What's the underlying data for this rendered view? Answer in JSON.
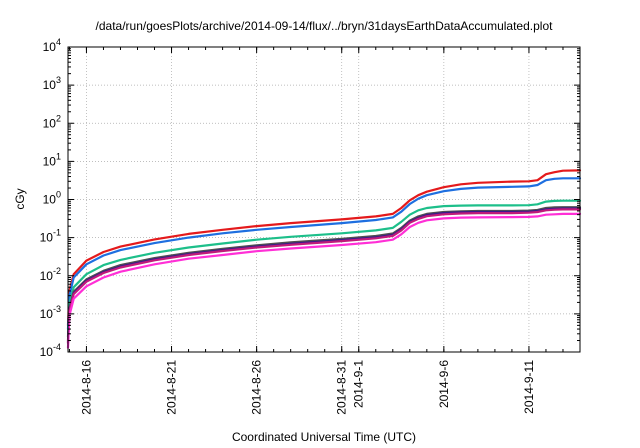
{
  "chart_data": {
    "type": "line",
    "title": "/data/run/goesPlots/archive/2014-09-14/flux/../bryn/31daysEarthDataAccumulated.plot",
    "xlabel": "Coordinated Universal Time (UTC)",
    "ylabel": "cGy",
    "x_range": [
      "2014-08-14T22:00",
      "2014-09-14T00:00"
    ],
    "y_scale": "log",
    "ylim": [
      0.0001,
      10000
    ],
    "grid": true,
    "legend": "none",
    "x_ticks": [
      {
        "date": "2014-08-16",
        "label": "2014-8-16"
      },
      {
        "date": "2014-08-21",
        "label": "2014-8-21"
      },
      {
        "date": "2014-08-26",
        "label": "2014-8-26"
      },
      {
        "date": "2014-08-31",
        "label": "2014-8-31"
      },
      {
        "date": "2014-09-01",
        "label": "2014-9-1"
      },
      {
        "date": "2014-09-06",
        "label": "2014-9-6"
      },
      {
        "date": "2014-09-11",
        "label": "2014-9-11"
      }
    ],
    "y_ticks": [
      {
        "value": 0.0001,
        "base": "10",
        "exp": "-4"
      },
      {
        "value": 0.001,
        "base": "10",
        "exp": "-3"
      },
      {
        "value": 0.01,
        "base": "10",
        "exp": "-2"
      },
      {
        "value": 0.1,
        "base": "10",
        "exp": "-1"
      },
      {
        "value": 1,
        "base": "10",
        "exp": "0"
      },
      {
        "value": 10,
        "base": "10",
        "exp": "1"
      },
      {
        "value": 100,
        "base": "10",
        "exp": "2"
      },
      {
        "value": 1000,
        "base": "10",
        "exp": "3"
      },
      {
        "value": 10000,
        "base": "10",
        "exp": "4"
      }
    ],
    "series": [
      {
        "color": "#e41a1c",
        "x": [
          "2014-08-14T22:00",
          "2014-08-15T00:00",
          "2014-08-15T06:00",
          "2014-08-16T00:00",
          "2014-08-17T00:00",
          "2014-08-18T00:00",
          "2014-08-20T00:00",
          "2014-08-22T00:00",
          "2014-08-24T00:00",
          "2014-08-26T00:00",
          "2014-08-28T00:00",
          "2014-08-31T00:00",
          "2014-09-02T00:00",
          "2014-09-03T00:00",
          "2014-09-03T12:00",
          "2014-09-04T00:00",
          "2014-09-04T12:00",
          "2014-09-05T00:00",
          "2014-09-06T00:00",
          "2014-09-07T00:00",
          "2014-09-08T00:00",
          "2014-09-10T00:00",
          "2014-09-11T00:00",
          "2014-09-11T12:00",
          "2014-09-12T00:00",
          "2014-09-12T12:00",
          "2014-09-13T00:00",
          "2014-09-14T00:00"
        ],
        "values": [
          0.0005,
          0.004,
          0.011,
          0.025,
          0.042,
          0.058,
          0.09,
          0.125,
          0.16,
          0.2,
          0.24,
          0.3,
          0.36,
          0.42,
          0.6,
          0.95,
          1.3,
          1.6,
          2.1,
          2.5,
          2.75,
          2.95,
          3.0,
          3.2,
          4.6,
          5.2,
          5.7,
          5.8
        ]
      },
      {
        "color": "#1e6fe0",
        "x": [
          "2014-08-14T22:00",
          "2014-08-15T00:00",
          "2014-08-15T06:00",
          "2014-08-16T00:00",
          "2014-08-17T00:00",
          "2014-08-18T00:00",
          "2014-08-20T00:00",
          "2014-08-22T00:00",
          "2014-08-24T00:00",
          "2014-08-26T00:00",
          "2014-08-28T00:00",
          "2014-08-31T00:00",
          "2014-09-02T00:00",
          "2014-09-03T00:00",
          "2014-09-03T12:00",
          "2014-09-04T00:00",
          "2014-09-04T12:00",
          "2014-09-05T00:00",
          "2014-09-06T00:00",
          "2014-09-07T00:00",
          "2014-09-08T00:00",
          "2014-09-10T00:00",
          "2014-09-11T00:00",
          "2014-09-11T12:00",
          "2014-09-12T00:00",
          "2014-09-12T12:00",
          "2014-09-13T00:00",
          "2014-09-14T00:00"
        ],
        "values": [
          0.0004,
          0.003,
          0.009,
          0.02,
          0.034,
          0.047,
          0.072,
          0.1,
          0.13,
          0.16,
          0.19,
          0.24,
          0.29,
          0.34,
          0.48,
          0.76,
          1.05,
          1.3,
          1.65,
          1.9,
          2.05,
          2.15,
          2.2,
          2.4,
          3.2,
          3.5,
          3.6,
          3.6
        ]
      },
      {
        "color": "#1dbf8a",
        "x": [
          "2014-08-14T22:00",
          "2014-08-15T00:00",
          "2014-08-15T06:00",
          "2014-08-16T00:00",
          "2014-08-17T00:00",
          "2014-08-18T00:00",
          "2014-08-20T00:00",
          "2014-08-22T00:00",
          "2014-08-24T00:00",
          "2014-08-26T00:00",
          "2014-08-28T00:00",
          "2014-08-31T00:00",
          "2014-09-02T00:00",
          "2014-09-03T00:00",
          "2014-09-03T12:00",
          "2014-09-04T00:00",
          "2014-09-04T12:00",
          "2014-09-05T00:00",
          "2014-09-06T00:00",
          "2014-09-07T00:00",
          "2014-09-08T00:00",
          "2014-09-10T00:00",
          "2014-09-11T00:00",
          "2014-09-11T12:00",
          "2014-09-12T00:00",
          "2014-09-12T12:00",
          "2014-09-13T00:00",
          "2014-09-14T00:00"
        ],
        "values": [
          0.00025,
          0.0018,
          0.005,
          0.011,
          0.019,
          0.026,
          0.04,
          0.055,
          0.07,
          0.088,
          0.105,
          0.13,
          0.155,
          0.18,
          0.26,
          0.4,
          0.52,
          0.6,
          0.67,
          0.69,
          0.7,
          0.7,
          0.71,
          0.75,
          0.88,
          0.92,
          0.93,
          0.93
        ]
      },
      {
        "color": "#505050",
        "x": [
          "2014-08-14T22:00",
          "2014-08-15T00:00",
          "2014-08-15T06:00",
          "2014-08-16T00:00",
          "2014-08-17T00:00",
          "2014-08-18T00:00",
          "2014-08-20T00:00",
          "2014-08-22T00:00",
          "2014-08-24T00:00",
          "2014-08-26T00:00",
          "2014-08-28T00:00",
          "2014-08-31T00:00",
          "2014-09-02T00:00",
          "2014-09-03T00:00",
          "2014-09-03T12:00",
          "2014-09-04T00:00",
          "2014-09-04T12:00",
          "2014-09-05T00:00",
          "2014-09-06T00:00",
          "2014-09-07T00:00",
          "2014-09-08T00:00",
          "2014-09-10T00:00",
          "2014-09-11T00:00",
          "2014-09-11T12:00",
          "2014-09-12T00:00",
          "2014-09-12T12:00",
          "2014-09-13T00:00",
          "2014-09-14T00:00"
        ],
        "values": [
          0.0002,
          0.0014,
          0.0038,
          0.008,
          0.0135,
          0.019,
          0.029,
          0.04,
          0.051,
          0.063,
          0.075,
          0.093,
          0.11,
          0.128,
          0.18,
          0.28,
          0.36,
          0.42,
          0.47,
          0.49,
          0.5,
          0.5,
          0.51,
          0.53,
          0.6,
          0.62,
          0.63,
          0.63
        ]
      },
      {
        "color": "#3a1a8c",
        "x": [
          "2014-08-14T22:00",
          "2014-08-15T00:00",
          "2014-08-15T06:00",
          "2014-08-16T00:00",
          "2014-08-17T00:00",
          "2014-08-18T00:00",
          "2014-08-20T00:00",
          "2014-08-22T00:00",
          "2014-08-24T00:00",
          "2014-08-26T00:00",
          "2014-08-28T00:00",
          "2014-08-31T00:00",
          "2014-09-02T00:00",
          "2014-09-03T00:00",
          "2014-09-03T12:00",
          "2014-09-04T00:00",
          "2014-09-04T12:00",
          "2014-09-05T00:00",
          "2014-09-06T00:00",
          "2014-09-07T00:00",
          "2014-09-08T00:00",
          "2014-09-10T00:00",
          "2014-09-11T00:00",
          "2014-09-11T12:00",
          "2014-09-12T00:00",
          "2014-09-12T12:00",
          "2014-09-13T00:00",
          "2014-09-14T00:00"
        ],
        "values": [
          0.00018,
          0.0013,
          0.0035,
          0.0074,
          0.0125,
          0.0175,
          0.027,
          0.037,
          0.047,
          0.058,
          0.069,
          0.086,
          0.102,
          0.118,
          0.165,
          0.26,
          0.33,
          0.39,
          0.44,
          0.46,
          0.47,
          0.47,
          0.48,
          0.5,
          0.55,
          0.57,
          0.58,
          0.58
        ]
      },
      {
        "color": "#c01a7a",
        "x": [
          "2014-08-14T22:00",
          "2014-08-15T00:00",
          "2014-08-15T06:00",
          "2014-08-16T00:00",
          "2014-08-17T00:00",
          "2014-08-18T00:00",
          "2014-08-20T00:00",
          "2014-08-22T00:00",
          "2014-08-24T00:00",
          "2014-08-26T00:00",
          "2014-08-28T00:00",
          "2014-08-31T00:00",
          "2014-09-02T00:00",
          "2014-09-03T00:00",
          "2014-09-03T12:00",
          "2014-09-04T00:00",
          "2014-09-04T12:00",
          "2014-09-05T00:00",
          "2014-09-06T00:00",
          "2014-09-07T00:00",
          "2014-09-08T00:00",
          "2014-09-10T00:00",
          "2014-09-11T00:00",
          "2014-09-11T12:00",
          "2014-09-12T00:00",
          "2014-09-12T12:00",
          "2014-09-13T00:00",
          "2014-09-14T00:00"
        ],
        "values": [
          0.00017,
          0.0012,
          0.0033,
          0.007,
          0.0118,
          0.0165,
          0.0255,
          0.035,
          0.0445,
          0.055,
          0.065,
          0.081,
          0.096,
          0.111,
          0.155,
          0.245,
          0.31,
          0.365,
          0.41,
          0.43,
          0.44,
          0.44,
          0.45,
          0.47,
          0.52,
          0.54,
          0.55,
          0.55
        ]
      },
      {
        "color": "#ff2fd6",
        "x": [
          "2014-08-14T22:00",
          "2014-08-15T00:00",
          "2014-08-15T06:00",
          "2014-08-16T00:00",
          "2014-08-17T00:00",
          "2014-08-18T00:00",
          "2014-08-20T00:00",
          "2014-08-22T00:00",
          "2014-08-24T00:00",
          "2014-08-26T00:00",
          "2014-08-28T00:00",
          "2014-08-31T00:00",
          "2014-09-02T00:00",
          "2014-09-03T00:00",
          "2014-09-03T12:00",
          "2014-09-04T00:00",
          "2014-09-04T12:00",
          "2014-09-05T00:00",
          "2014-09-06T00:00",
          "2014-09-07T00:00",
          "2014-09-08T00:00",
          "2014-09-10T00:00",
          "2014-09-11T00:00",
          "2014-09-11T12:00",
          "2014-09-12T00:00",
          "2014-09-12T12:00",
          "2014-09-13T00:00",
          "2014-09-14T00:00"
        ],
        "values": [
          0.00013,
          0.0009,
          0.0025,
          0.0053,
          0.009,
          0.0128,
          0.02,
          0.028,
          0.035,
          0.044,
          0.052,
          0.064,
          0.076,
          0.088,
          0.122,
          0.19,
          0.245,
          0.285,
          0.32,
          0.335,
          0.34,
          0.345,
          0.35,
          0.36,
          0.4,
          0.41,
          0.42,
          0.42
        ]
      }
    ]
  }
}
